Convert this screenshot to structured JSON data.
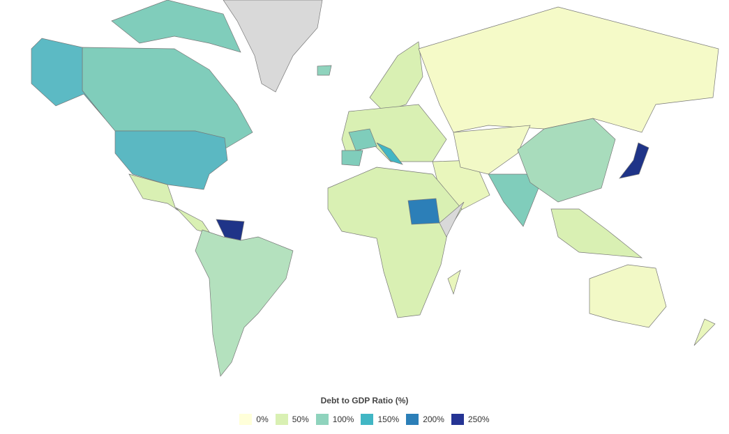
{
  "legend": {
    "title": "Debt to GDP Ratio (%)",
    "items": [
      {
        "label": "0%",
        "color": "#ffffd9"
      },
      {
        "label": "50%",
        "color": "#d9f0b3"
      },
      {
        "label": "100%",
        "color": "#8fd3bd"
      },
      {
        "label": "150%",
        "color": "#41b6c4"
      },
      {
        "label": "200%",
        "color": "#2c7fb8"
      },
      {
        "label": "250%",
        "color": "#253494"
      }
    ]
  }
}
